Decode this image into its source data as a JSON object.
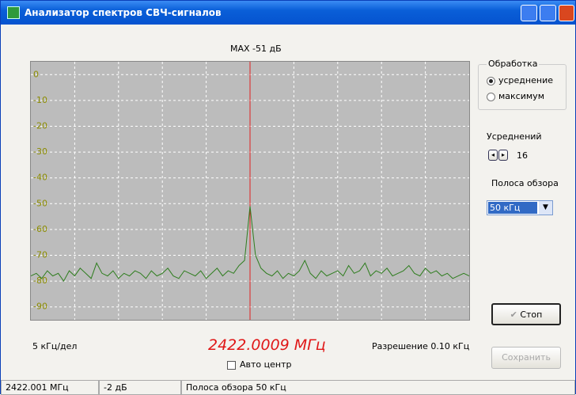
{
  "window": {
    "title": "Анализатор спектров СВЧ-сигналов"
  },
  "chart_data": {
    "type": "line",
    "title": "MAX -51 дБ",
    "color": "#2e7d1e",
    "grid": true,
    "ylim": [
      -95,
      5
    ],
    "yticks": [
      0,
      -10,
      -20,
      -30,
      -40,
      -50,
      -60,
      -70,
      -80,
      -90
    ],
    "values": [
      -78,
      -77,
      -79,
      -76,
      -78,
      -77,
      -80,
      -76,
      -78,
      -75,
      -77,
      -79,
      -73,
      -77,
      -78,
      -76,
      -79,
      -77,
      -78,
      -76,
      -77,
      -79,
      -76,
      -78,
      -77,
      -75,
      -78,
      -79,
      -76,
      -77,
      -78,
      -76,
      -79,
      -77,
      -75,
      -78,
      -76,
      -77,
      -74,
      -72,
      -51,
      -70,
      -75,
      -77,
      -78,
      -76,
      -79,
      -77,
      -78,
      -76,
      -72,
      -77,
      -79,
      -76,
      -78,
      -77,
      -76,
      -78,
      -74,
      -77,
      -76,
      -73,
      -78,
      -76,
      -77,
      -75,
      -78,
      -77,
      -76,
      -74,
      -77,
      -78,
      -75,
      -77,
      -76,
      -78,
      -77,
      -79,
      -78,
      -77,
      -78
    ]
  },
  "controls": {
    "processing": {
      "label": "Обработка",
      "options": [
        "усреднение",
        "максимум"
      ]
    },
    "averages": {
      "label": "Усреднений",
      "value": 16
    },
    "span": {
      "label": "Полоса обзора",
      "value": "50 кГц"
    },
    "stop": "Стоп",
    "save": "Сохранить",
    "scale": "5 кГц/дел",
    "center_freq": "2422.0009 МГц",
    "resolution": "Разрешение 0.10 кГц",
    "auto_center": "Авто центр"
  },
  "status_bar": [
    "2422.001 МГц",
    "-2 дБ",
    "Полоса обзора 50 кГц"
  ]
}
